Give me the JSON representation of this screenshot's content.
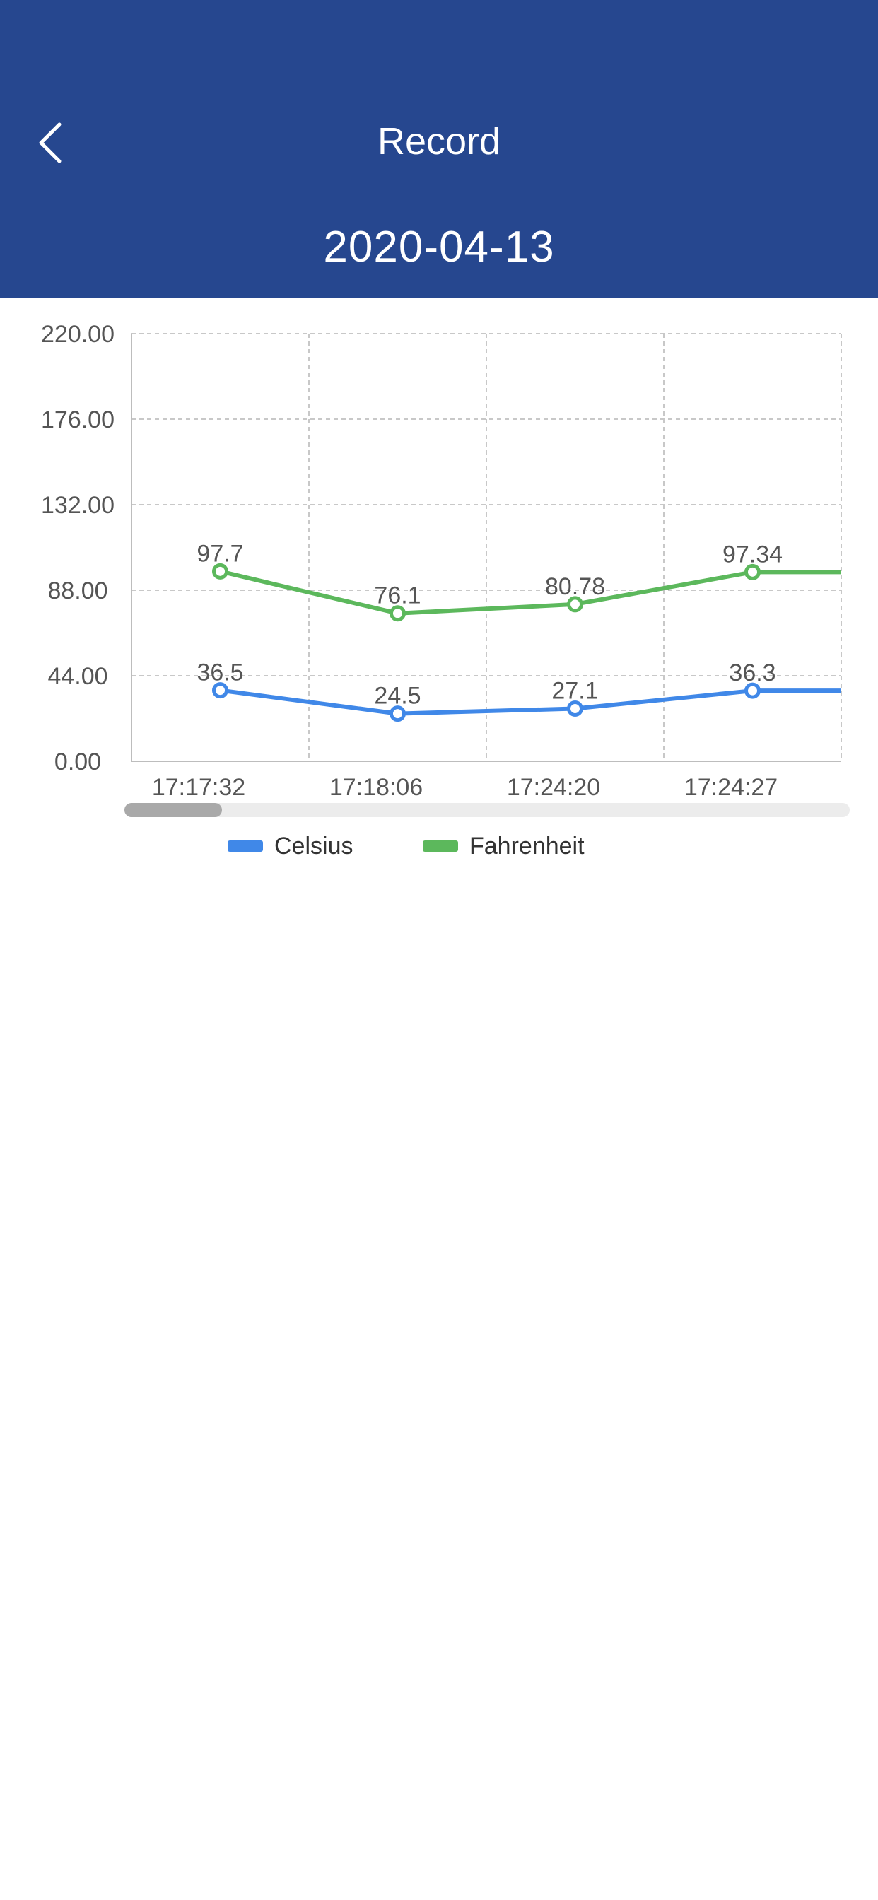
{
  "header": {
    "title": "Record",
    "date": "2020-04-13",
    "back_icon": "chevron-left-icon",
    "background_color": "#26478f"
  },
  "chart_data": {
    "type": "line",
    "categories": [
      "17:17:32",
      "17:18:06",
      "17:24:20",
      "17:24:27"
    ],
    "series": [
      {
        "name": "Celsius",
        "color": "#4088e8",
        "values": [
          36.5,
          24.5,
          27.1,
          36.3
        ]
      },
      {
        "name": "Fahrenheit",
        "color": "#5cb85c",
        "values": [
          97.7,
          76.1,
          80.78,
          97.34
        ]
      }
    ],
    "y_ticks": [
      "0.00",
      "44.00",
      "88.00",
      "132.00",
      "176.00",
      "220.00"
    ],
    "ylim": [
      0,
      220
    ],
    "grid": true,
    "legend_position": "bottom",
    "scrollable_x": true,
    "scroll_position": 0
  }
}
